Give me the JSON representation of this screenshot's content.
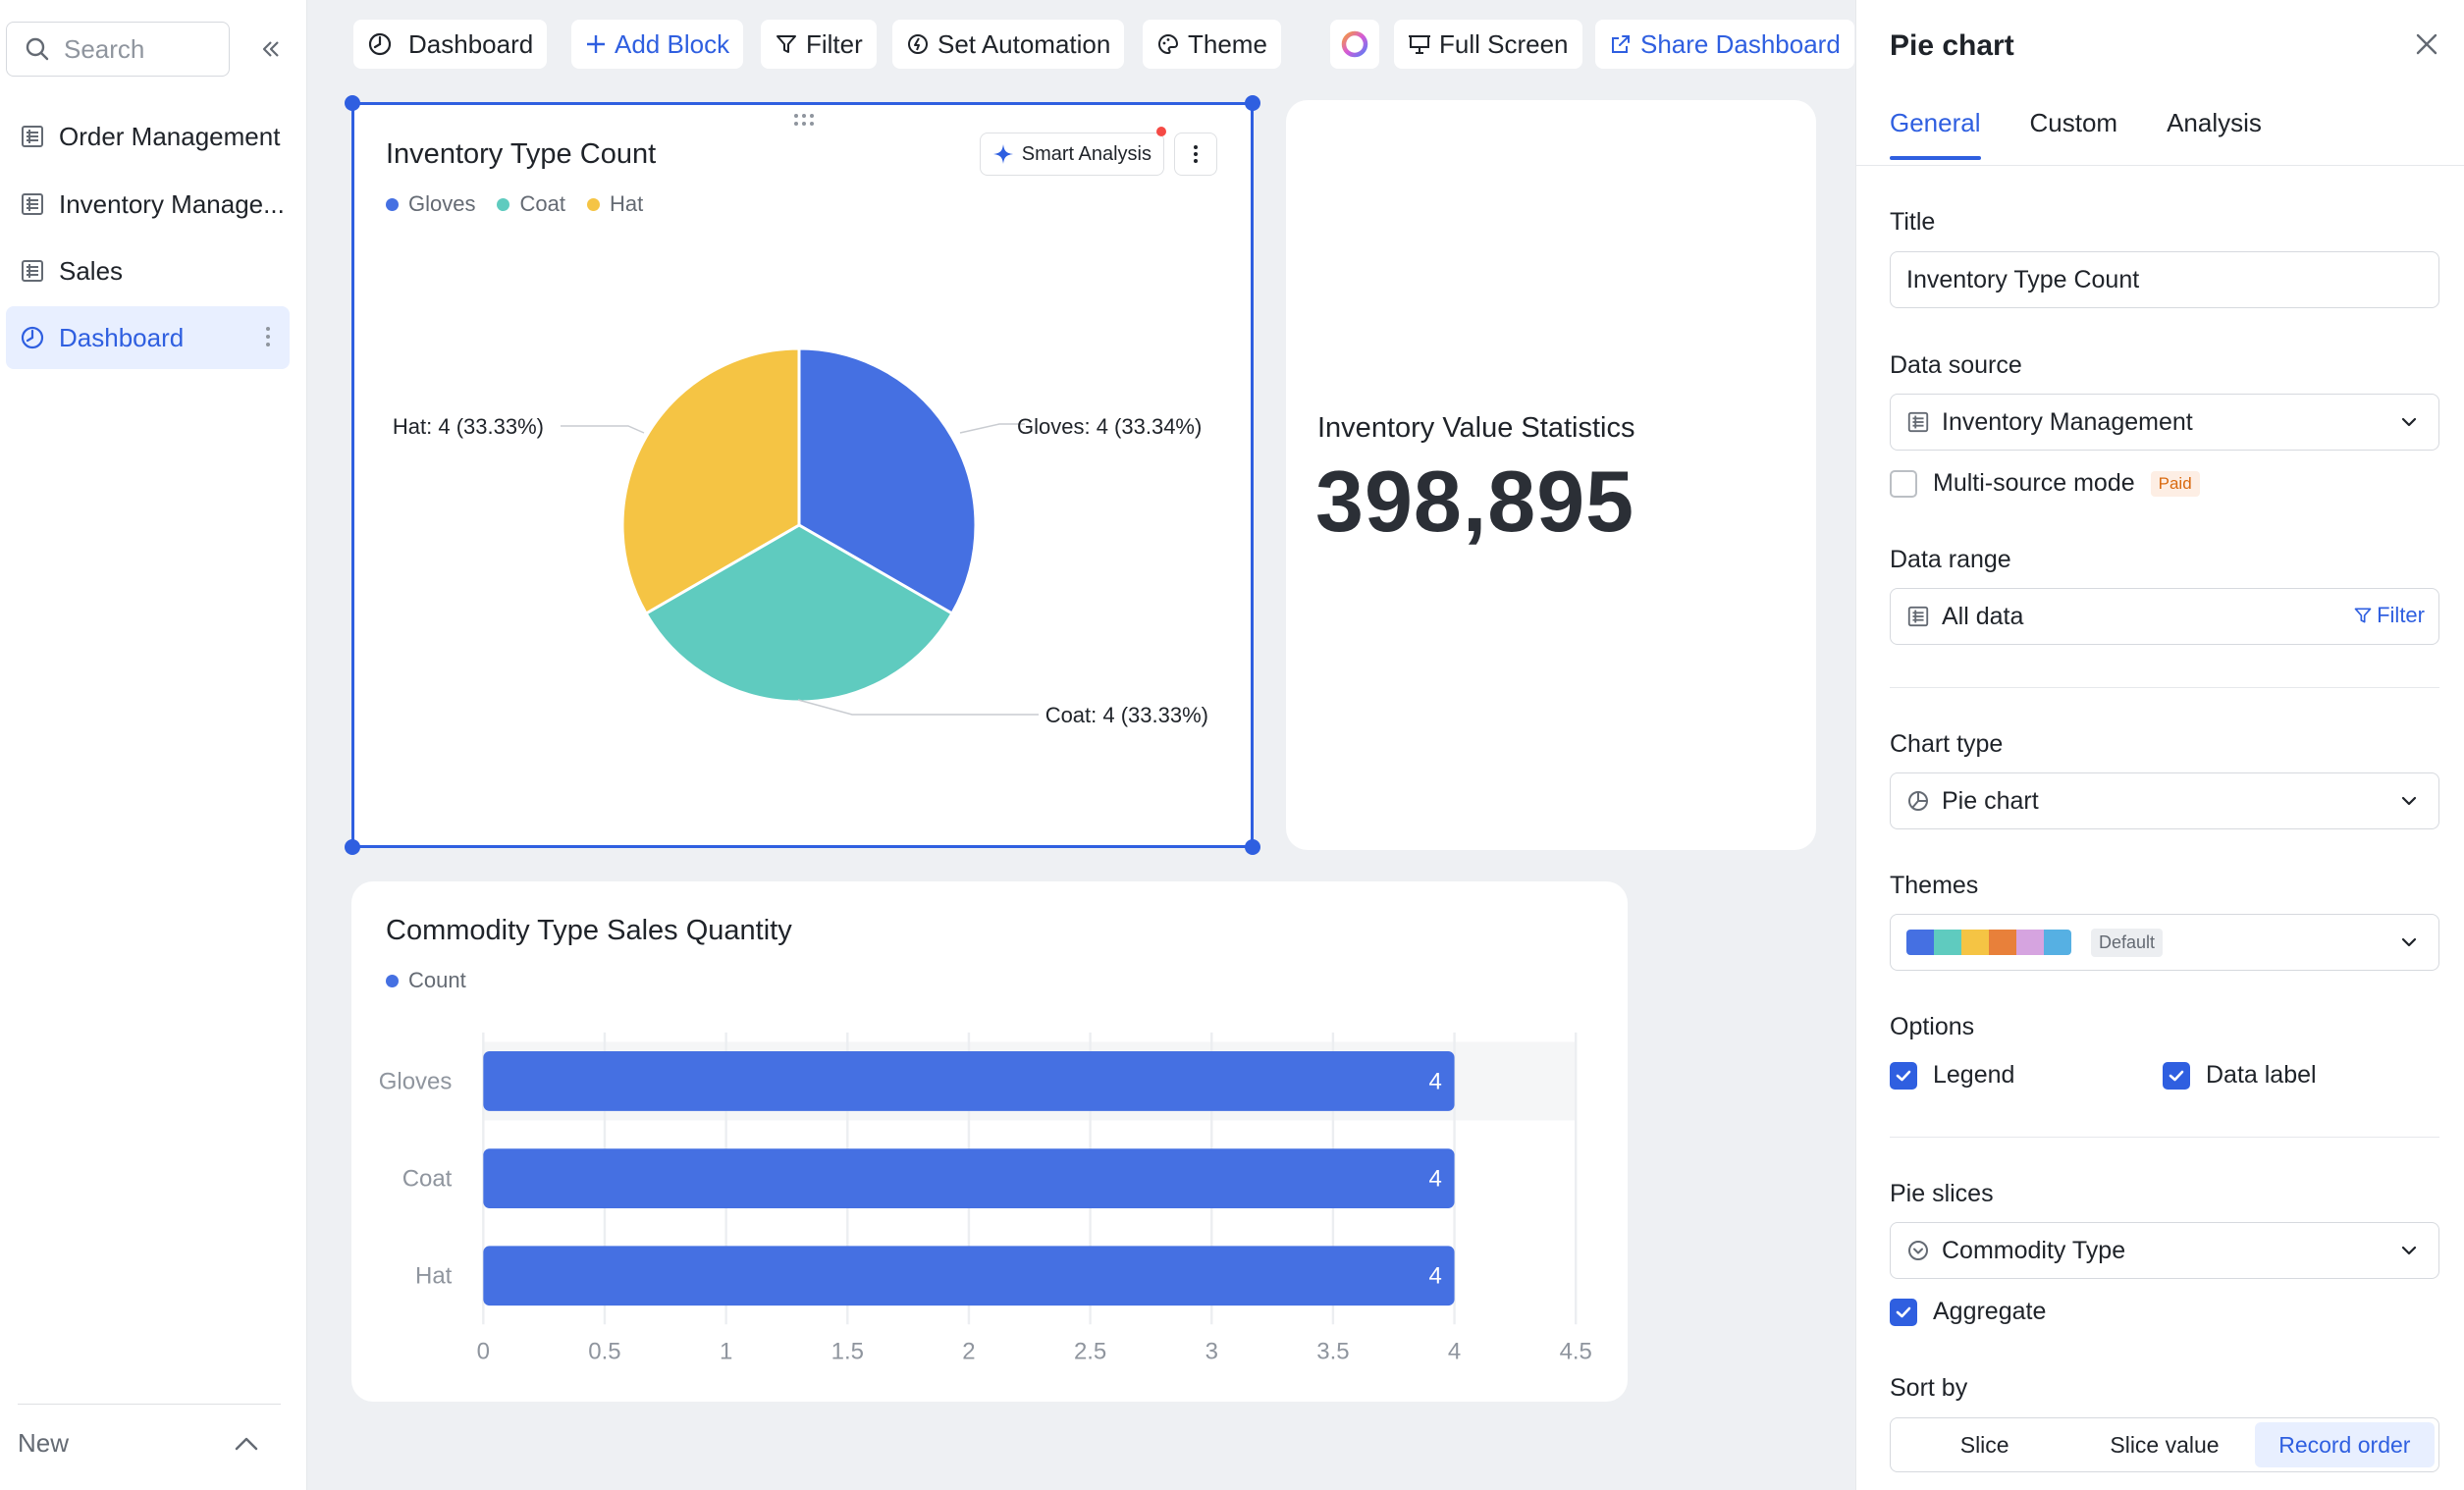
{
  "sidebar": {
    "search_placeholder": "Search",
    "items": [
      {
        "label": "Order Management"
      },
      {
        "label": "Inventory Manage..."
      },
      {
        "label": "Sales"
      },
      {
        "label": "Dashboard"
      }
    ],
    "bottom_label": "New"
  },
  "toolbar": {
    "dashboard": "Dashboard",
    "add_block": "Add Block",
    "filter": "Filter",
    "set_automation": "Set Automation",
    "theme": "Theme",
    "full_screen": "Full Screen",
    "share_dashboard": "Share Dashboard"
  },
  "pie_card": {
    "title": "Inventory Type Count",
    "smart_analysis": "Smart Analysis",
    "labels": {
      "gloves": "Gloves: 4 (33.34%)",
      "coat": "Coat: 4 (33.33%)",
      "hat": "Hat: 4 (33.33%)"
    }
  },
  "stat_card": {
    "label": "Inventory Value Statistics",
    "value": "398,895"
  },
  "bar_card": {
    "title": "Commodity Type Sales Quantity"
  },
  "chart_data": [
    {
      "type": "pie",
      "title": "Inventory Type Count",
      "legend": [
        "Gloves",
        "Coat",
        "Hat"
      ],
      "legend_position": "top-left",
      "slices": [
        {
          "name": "Gloves",
          "value": 4,
          "percent": 33.34,
          "color": "#4570e2"
        },
        {
          "name": "Coat",
          "value": 4,
          "percent": 33.33,
          "color": "#5fcbbf"
        },
        {
          "name": "Hat",
          "value": 4,
          "percent": 33.33,
          "color": "#f5c444"
        }
      ]
    },
    {
      "type": "bar",
      "orientation": "horizontal",
      "title": "Commodity Type Sales Quantity",
      "categories": [
        "Gloves",
        "Coat",
        "Hat"
      ],
      "series": [
        {
          "name": "Count",
          "values": [
            4,
            4,
            4
          ],
          "color": "#4570e2"
        }
      ],
      "xlim": [
        0,
        4.5
      ],
      "x_ticks": [
        "0",
        "0.5",
        "1",
        "1.5",
        "2",
        "2.5",
        "3",
        "3.5",
        "4",
        "4.5"
      ],
      "grid": true,
      "legend_position": "top-left"
    }
  ],
  "panel": {
    "title": "Pie chart",
    "tabs": [
      "General",
      "Custom",
      "Analysis"
    ],
    "title_label": "Title",
    "title_value": "Inventory Type Count",
    "data_source_label": "Data source",
    "data_source_value": "Inventory Management",
    "multi_source": "Multi-source mode",
    "paid": "Paid",
    "data_range_label": "Data range",
    "data_range_value": "All data",
    "filter": "Filter",
    "chart_type_label": "Chart type",
    "chart_type_value": "Pie chart",
    "themes_label": "Themes",
    "theme_default": "Default",
    "theme_colors": [
      "#4570e2",
      "#5fcbbf",
      "#f5c444",
      "#e8803a",
      "#d6a4e0",
      "#56b0e3"
    ],
    "options_label": "Options",
    "legend_option": "Legend",
    "data_label_option": "Data label",
    "pie_slices_label": "Pie slices",
    "pie_slices_value": "Commodity Type",
    "aggregate": "Aggregate",
    "sort_by_label": "Sort by",
    "sort_options": [
      "Slice",
      "Slice value",
      "Record order"
    ],
    "sort_selected": "Record order"
  },
  "colors": {
    "accent": "#2f5fe0",
    "selection_bg": "#e8efff",
    "canvas_bg": "#eef0f3"
  }
}
